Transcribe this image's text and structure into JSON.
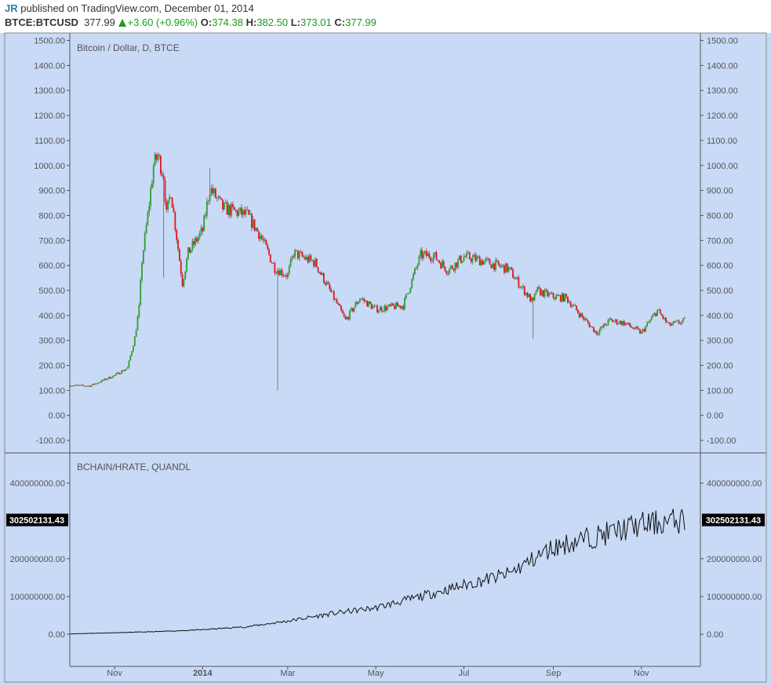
{
  "header": {
    "author": "JR",
    "published": "published on TradingView.com, December 01, 2014",
    "symbol": "BTCE:BTCUSD",
    "last": "377.99",
    "change": "+3.60 (+0.96%)",
    "open_label": "O:",
    "open": "374.38",
    "high_label": "H:",
    "high": "382.50",
    "low_label": "L:",
    "low": "373.01",
    "close_label": "C:",
    "close": "377.99"
  },
  "colors": {
    "panel_bg": "#c8daf6",
    "up": "#2ca02c",
    "down": "#e4141b",
    "line": "#111111"
  },
  "chart_data": [
    {
      "type": "candlestick",
      "title": "Bitcoin / Dollar, D, BTCE",
      "ylim": [
        -150,
        1530
      ],
      "yticks": [
        "1500.00",
        "1400.00",
        "1300.00",
        "1200.00",
        "1100.00",
        "1000.00",
        "900.00",
        "800.00",
        "700.00",
        "600.00",
        "500.00",
        "400.00",
        "300.00",
        "200.00",
        "100.00",
        "0.00",
        "-100.00"
      ],
      "xticks": [
        "Nov",
        "2014",
        "Mar",
        "May",
        "Jul",
        "Sep",
        "Nov"
      ],
      "date_range": [
        "2013-10-01",
        "2014-12-01"
      ],
      "key_points": [
        {
          "date": "2013-10-01",
          "close": 120
        },
        {
          "date": "2013-10-15",
          "close": 118
        },
        {
          "date": "2013-11-01",
          "close": 160
        },
        {
          "date": "2013-11-10",
          "close": 190
        },
        {
          "date": "2013-11-15",
          "close": 310
        },
        {
          "date": "2013-11-18",
          "close": 430
        },
        {
          "date": "2013-11-20",
          "close": 620
        },
        {
          "date": "2013-11-24",
          "close": 800
        },
        {
          "date": "2013-11-28",
          "close": 1000
        },
        {
          "date": "2013-12-01",
          "close": 1040
        },
        {
          "date": "2013-12-05",
          "close": 960
        },
        {
          "date": "2013-12-07",
          "close": 800
        },
        {
          "date": "2013-12-10",
          "close": 900
        },
        {
          "date": "2013-12-18",
          "close": 530
        },
        {
          "date": "2013-12-22",
          "close": 650
        },
        {
          "date": "2014-01-01",
          "close": 740
        },
        {
          "date": "2014-01-06",
          "close": 910
        },
        {
          "date": "2014-01-15",
          "close": 830
        },
        {
          "date": "2014-02-01",
          "close": 800
        },
        {
          "date": "2014-02-10",
          "close": 720
        },
        {
          "date": "2014-02-20",
          "close": 590
        },
        {
          "date": "2014-03-01",
          "close": 560
        },
        {
          "date": "2014-03-05",
          "close": 650
        },
        {
          "date": "2014-03-20",
          "close": 610
        },
        {
          "date": "2014-04-01",
          "close": 480
        },
        {
          "date": "2014-04-10",
          "close": 380
        },
        {
          "date": "2014-04-20",
          "close": 470
        },
        {
          "date": "2014-05-01",
          "close": 425
        },
        {
          "date": "2014-05-20",
          "close": 440
        },
        {
          "date": "2014-06-01",
          "close": 640
        },
        {
          "date": "2014-06-10",
          "close": 640
        },
        {
          "date": "2014-06-20",
          "close": 580
        },
        {
          "date": "2014-07-01",
          "close": 635
        },
        {
          "date": "2014-07-10",
          "close": 625
        },
        {
          "date": "2014-08-01",
          "close": 585
        },
        {
          "date": "2014-08-18",
          "close": 450
        },
        {
          "date": "2014-08-20",
          "close": 500
        },
        {
          "date": "2014-09-01",
          "close": 475
        },
        {
          "date": "2014-09-10",
          "close": 470
        },
        {
          "date": "2014-09-20",
          "close": 400
        },
        {
          "date": "2014-10-01",
          "close": 330
        },
        {
          "date": "2014-10-10",
          "close": 380
        },
        {
          "date": "2014-10-20",
          "close": 370
        },
        {
          "date": "2014-11-01",
          "close": 330
        },
        {
          "date": "2014-11-12",
          "close": 420
        },
        {
          "date": "2014-11-20",
          "close": 360
        },
        {
          "date": "2014-12-01",
          "close": 378
        }
      ],
      "wicks": [
        {
          "date": "2013-12-05",
          "low": 550
        },
        {
          "date": "2014-01-06",
          "high": 990
        },
        {
          "date": "2014-02-22",
          "low": 100
        },
        {
          "date": "2014-08-18",
          "low": 305
        }
      ]
    },
    {
      "type": "line",
      "title": "BCHAIN/HRATE, QUANDL",
      "ylim": [
        -85000000,
        480000000
      ],
      "yticks": [
        "400000000.00",
        "200000000.00",
        "100000000.00",
        "0.00"
      ],
      "last_value_label": "302502131.43",
      "last_value": 302502131.43,
      "key_points": [
        {
          "date": "2013-10-01",
          "value": 1000000
        },
        {
          "date": "2013-11-01",
          "value": 4000000
        },
        {
          "date": "2013-12-01",
          "value": 7000000
        },
        {
          "date": "2014-01-01",
          "value": 12000000
        },
        {
          "date": "2014-02-01",
          "value": 20000000
        },
        {
          "date": "2014-03-01",
          "value": 35000000
        },
        {
          "date": "2014-04-01",
          "value": 55000000
        },
        {
          "date": "2014-05-01",
          "value": 70000000
        },
        {
          "date": "2014-06-01",
          "value": 100000000
        },
        {
          "date": "2014-07-01",
          "value": 130000000
        },
        {
          "date": "2014-08-01",
          "value": 160000000
        },
        {
          "date": "2014-09-01",
          "value": 230000000
        },
        {
          "date": "2014-10-01",
          "value": 260000000
        },
        {
          "date": "2014-11-01",
          "value": 290000000
        },
        {
          "date": "2014-12-01",
          "value": 302000000
        }
      ]
    }
  ]
}
